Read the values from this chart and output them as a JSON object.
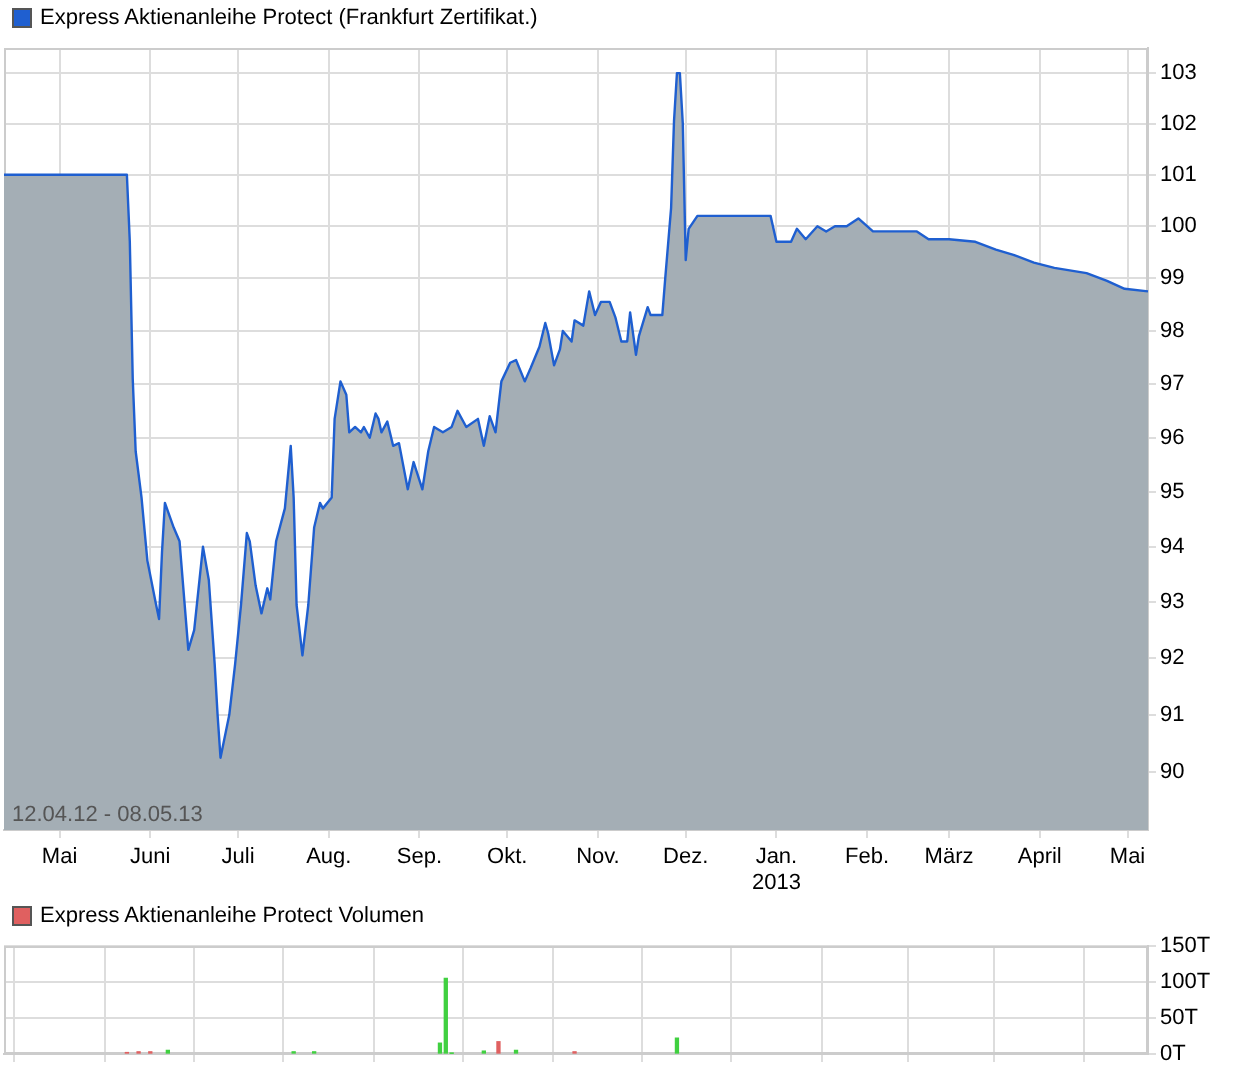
{
  "chart_data": [
    {
      "type": "area",
      "legend": "top left",
      "grid": true,
      "log": true,
      "annotations": [
        "12.04.12 - 08.05.13"
      ],
      "xlim": [
        "2012-04-12",
        "2013-05-08"
      ],
      "xticks": [
        {
          "value": "2012-05-01",
          "label": "Mai"
        },
        {
          "value": "2012-06-01",
          "label": "Juni"
        },
        {
          "value": "2012-07-01",
          "label": "Juli"
        },
        {
          "value": "2012-08-01",
          "label": "Aug."
        },
        {
          "value": "2012-09-01",
          "label": "Sep."
        },
        {
          "value": "2012-10-01",
          "label": "Okt."
        },
        {
          "value": "2012-11-01",
          "label": "Nov."
        },
        {
          "value": "2012-12-01",
          "label": "Dez."
        },
        {
          "value": "2013-01-01",
          "label": "Jan.\n2013"
        },
        {
          "value": "2013-02-01",
          "label": "Feb."
        },
        {
          "value": "2013-03-01",
          "label": "März"
        },
        {
          "value": "2013-04-01",
          "label": "April"
        },
        {
          "value": "2013-05-01",
          "label": "Mai"
        }
      ],
      "ylim": [
        89,
        103.5
      ],
      "yticks": [
        90,
        91,
        92,
        93,
        94,
        95,
        96,
        97,
        98,
        99,
        100,
        101,
        102,
        103
      ],
      "x": [
        "2012-04-12",
        "2012-05-24",
        "2012-05-25",
        "2012-05-26",
        "2012-05-27",
        "2012-05-29",
        "2012-05-31",
        "2012-06-03",
        "2012-06-04",
        "2012-06-05",
        "2012-06-06",
        "2012-06-09",
        "2012-06-11",
        "2012-06-14",
        "2012-06-16",
        "2012-06-19",
        "2012-06-21",
        "2012-06-23",
        "2012-06-24",
        "2012-06-25",
        "2012-06-28",
        "2012-06-30",
        "2012-07-02",
        "2012-07-04",
        "2012-07-05",
        "2012-07-07",
        "2012-07-09",
        "2012-07-11",
        "2012-07-12",
        "2012-07-14",
        "2012-07-17",
        "2012-07-19",
        "2012-07-20",
        "2012-07-21",
        "2012-07-23",
        "2012-07-25",
        "2012-07-27",
        "2012-07-29",
        "2012-07-30",
        "2012-08-02",
        "2012-08-03",
        "2012-08-05",
        "2012-08-07",
        "2012-08-08",
        "2012-08-10",
        "2012-08-12",
        "2012-08-13",
        "2012-08-15",
        "2012-08-17",
        "2012-08-18",
        "2012-08-19",
        "2012-08-21",
        "2012-08-23",
        "2012-08-25",
        "2012-08-28",
        "2012-08-30",
        "2012-09-02",
        "2012-09-04",
        "2012-09-06",
        "2012-09-09",
        "2012-09-12",
        "2012-09-14",
        "2012-09-17",
        "2012-09-21",
        "2012-09-23",
        "2012-09-25",
        "2012-09-27",
        "2012-09-29",
        "2012-10-02",
        "2012-10-04",
        "2012-10-07",
        "2012-10-09",
        "2012-10-12",
        "2012-10-14",
        "2012-10-15",
        "2012-10-17",
        "2012-10-19",
        "2012-10-20",
        "2012-10-23",
        "2012-10-24",
        "2012-10-27",
        "2012-10-29",
        "2012-10-31",
        "2012-11-02",
        "2012-11-05",
        "2012-11-07",
        "2012-11-09",
        "2012-11-11",
        "2012-11-12",
        "2012-11-14",
        "2012-11-15",
        "2012-11-18",
        "2012-11-19",
        "2012-11-23",
        "2012-11-24",
        "2012-11-26",
        "2012-11-27",
        "2012-11-28",
        "2012-11-29",
        "2012-11-30",
        "2012-12-01",
        "2012-12-02",
        "2012-12-05",
        "2012-12-30",
        "2013-01-01",
        "2013-01-06",
        "2013-01-08",
        "2013-01-11",
        "2013-01-15",
        "2013-01-18",
        "2013-01-21",
        "2013-01-25",
        "2013-01-29",
        "2013-02-03",
        "2013-02-09",
        "2013-02-18",
        "2013-02-22",
        "2013-03-01",
        "2013-03-10",
        "2013-03-17",
        "2013-03-23",
        "2013-03-30",
        "2013-04-06",
        "2013-04-17",
        "2013-04-24",
        "2013-04-30",
        "2013-05-08"
      ],
      "series": [
        {
          "name": "Express Aktienanleihe Protect (Frankfurt Zertifikat.)",
          "color": "#1f5fd0",
          "values": [
            101.0,
            101.0,
            99.7,
            97.1,
            95.75,
            94.9,
            93.75,
            92.95,
            92.7,
            93.9,
            94.8,
            94.35,
            94.1,
            92.15,
            92.5,
            94.0,
            93.4,
            91.9,
            91.0,
            90.25,
            91.0,
            91.9,
            92.95,
            94.25,
            94.1,
            93.3,
            92.8,
            93.25,
            93.05,
            94.1,
            94.7,
            95.85,
            94.9,
            92.95,
            92.05,
            92.95,
            94.35,
            94.8,
            94.7,
            94.9,
            96.35,
            97.05,
            96.8,
            96.1,
            96.2,
            96.1,
            96.2,
            96.0,
            96.45,
            96.35,
            96.1,
            96.3,
            95.85,
            95.9,
            95.05,
            95.55,
            95.05,
            95.75,
            96.2,
            96.1,
            96.2,
            96.5,
            96.2,
            96.35,
            95.85,
            96.4,
            96.1,
            97.05,
            97.4,
            97.45,
            97.05,
            97.3,
            97.7,
            98.15,
            97.95,
            97.35,
            97.65,
            98.0,
            97.8,
            98.2,
            98.1,
            98.75,
            98.3,
            98.55,
            98.55,
            98.25,
            97.8,
            97.8,
            98.35,
            97.55,
            97.9,
            98.45,
            98.3,
            98.3,
            99.0,
            100.35,
            102.05,
            103.0,
            103.0,
            102.0,
            99.35,
            99.95,
            100.2,
            100.2,
            99.7,
            99.7,
            99.95,
            99.75,
            100.0,
            99.9,
            100.0,
            100.0,
            100.15,
            99.9,
            99.9,
            99.9,
            99.75,
            99.75,
            99.7,
            99.55,
            99.45,
            99.3,
            99.2,
            99.1,
            98.95,
            98.8,
            98.75
          ]
        }
      ]
    },
    {
      "type": "bar",
      "legend": "top left",
      "grid": true,
      "tick_labels": "y",
      "xlim": [
        "2012-04-12",
        "2013-05-08"
      ],
      "xticks": [
        {
          "value": "2012-05-01",
          "label": null
        },
        {
          "value": "2012-06-01",
          "label": null
        },
        {
          "value": "2012-07-01",
          "label": null
        },
        {
          "value": "2012-08-01",
          "label": null
        },
        {
          "value": "2012-09-01",
          "label": null
        },
        {
          "value": "2012-10-01",
          "label": null
        },
        {
          "value": "2012-11-01",
          "label": null
        },
        {
          "value": "2012-12-01",
          "label": null
        },
        {
          "value": "2013-01-01",
          "label": null
        },
        {
          "value": "2013-02-01",
          "label": null
        },
        {
          "value": "2013-03-01",
          "label": null
        },
        {
          "value": "2013-04-01",
          "label": null
        },
        {
          "value": "2013-05-01",
          "label": null
        }
      ],
      "ylim": [
        0,
        150
      ],
      "yticks": [
        {
          "value": 0,
          "label": "0T"
        },
        {
          "value": 50,
          "label": "50T"
        },
        {
          "value": 100,
          "label": "100T"
        },
        {
          "value": 150,
          "label": "150T"
        }
      ],
      "x": [
        "2012-05-24",
        "2012-05-28",
        "2012-06-01",
        "2012-06-07",
        "2012-07-20",
        "2012-07-27",
        "2012-09-08",
        "2012-09-10",
        "2012-09-12",
        "2012-09-23",
        "2012-09-28",
        "2012-10-04",
        "2012-10-24",
        "2012-11-28"
      ],
      "series": [
        {
          "name": "Express Aktienanleihe Protect Volumen",
          "color": "#e06060",
          "colors": [
            "#e06060",
            "#e06060",
            "#e06060",
            "#40d040",
            "#40d040",
            "#40d040",
            "#40d040",
            "#40d040",
            "#40d040",
            "#40d040",
            "#e06060",
            "#40d040",
            "#e06060",
            "#40d040"
          ],
          "values": [
            2,
            3,
            3,
            5,
            3,
            3,
            15,
            105,
            1,
            4,
            17,
            5,
            3,
            22
          ]
        }
      ]
    }
  ]
}
